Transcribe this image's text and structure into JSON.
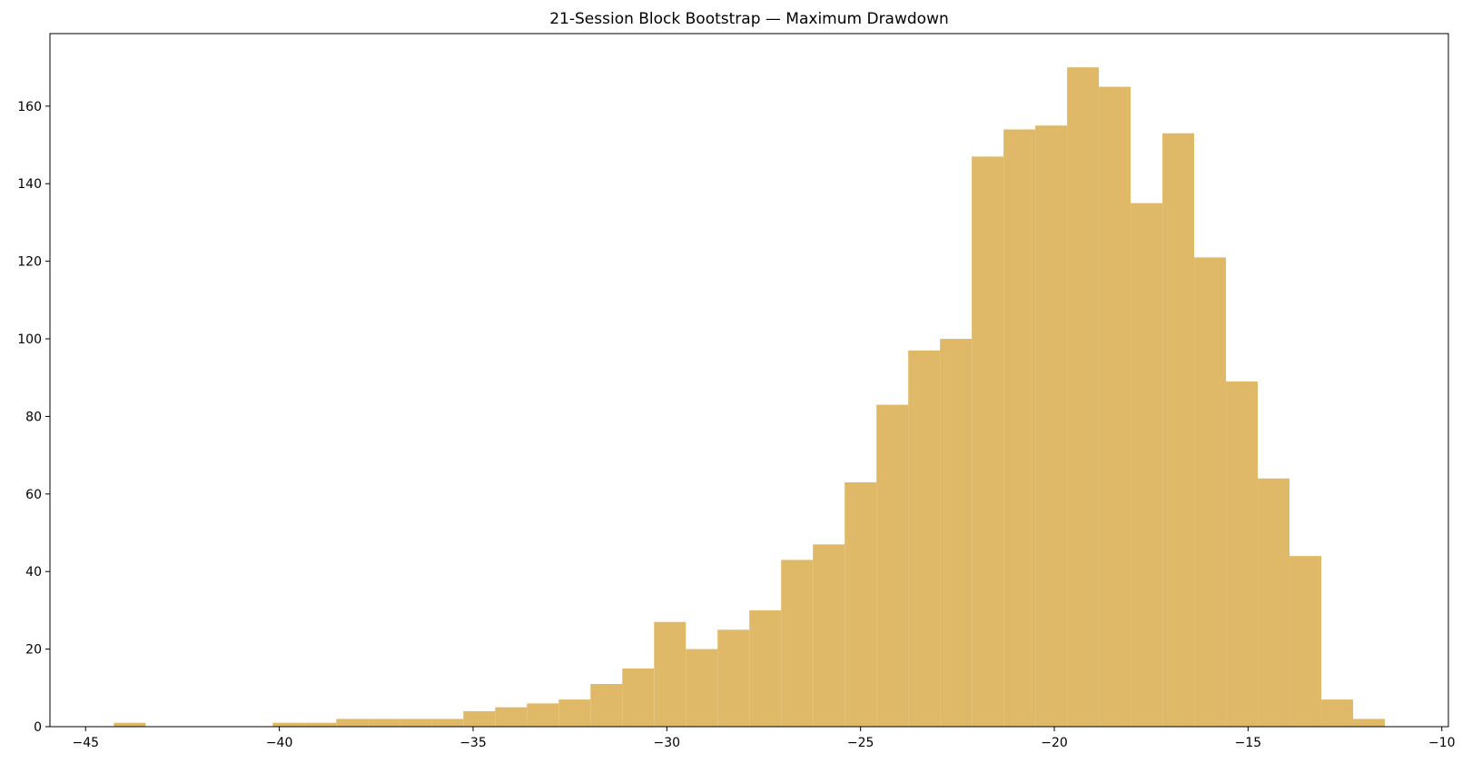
{
  "chart_data": {
    "type": "histogram",
    "title": "21-Session Block Bootstrap — Maximum Drawdown",
    "bins": [
      -44.27,
      -43.45,
      -42.63,
      -41.81,
      -40.99,
      -40.17,
      -39.35,
      -38.53,
      -37.71,
      -36.89,
      -36.07,
      -35.25,
      -34.43,
      -33.61,
      -32.79,
      -31.97,
      -31.15,
      -30.33,
      -29.51,
      -28.69,
      -27.87,
      -27.05,
      -26.23,
      -25.41,
      -24.59,
      -23.77,
      -22.95,
      -22.13,
      -21.31,
      -20.49,
      -19.67,
      -18.85,
      -18.03,
      -17.21,
      -16.39,
      -15.57,
      -14.75,
      -13.93,
      -13.11,
      -12.29,
      -11.47
    ],
    "values": [
      1,
      0,
      0,
      0,
      0,
      1,
      1,
      2,
      2,
      2,
      2,
      4,
      5,
      6,
      7,
      11,
      15,
      27,
      20,
      25,
      30,
      43,
      47,
      63,
      83,
      97,
      100,
      147,
      154,
      155,
      170,
      165,
      135,
      153,
      121,
      89,
      64,
      44,
      7,
      2
    ],
    "color": "#e0b968",
    "xlim": [
      -45.92,
      -9.83
    ],
    "ylim": [
      0,
      178.7
    ],
    "xticks": [
      {
        "value": -45,
        "label": "−45"
      },
      {
        "value": -40,
        "label": "−40"
      },
      {
        "value": -35,
        "label": "−35"
      },
      {
        "value": -30,
        "label": "−30"
      },
      {
        "value": -25,
        "label": "−25"
      },
      {
        "value": -20,
        "label": "−20"
      },
      {
        "value": -15,
        "label": "−15"
      },
      {
        "value": -10,
        "label": "−10"
      }
    ],
    "yticks": [
      0,
      20,
      40,
      60,
      80,
      100,
      120,
      140,
      160
    ]
  }
}
